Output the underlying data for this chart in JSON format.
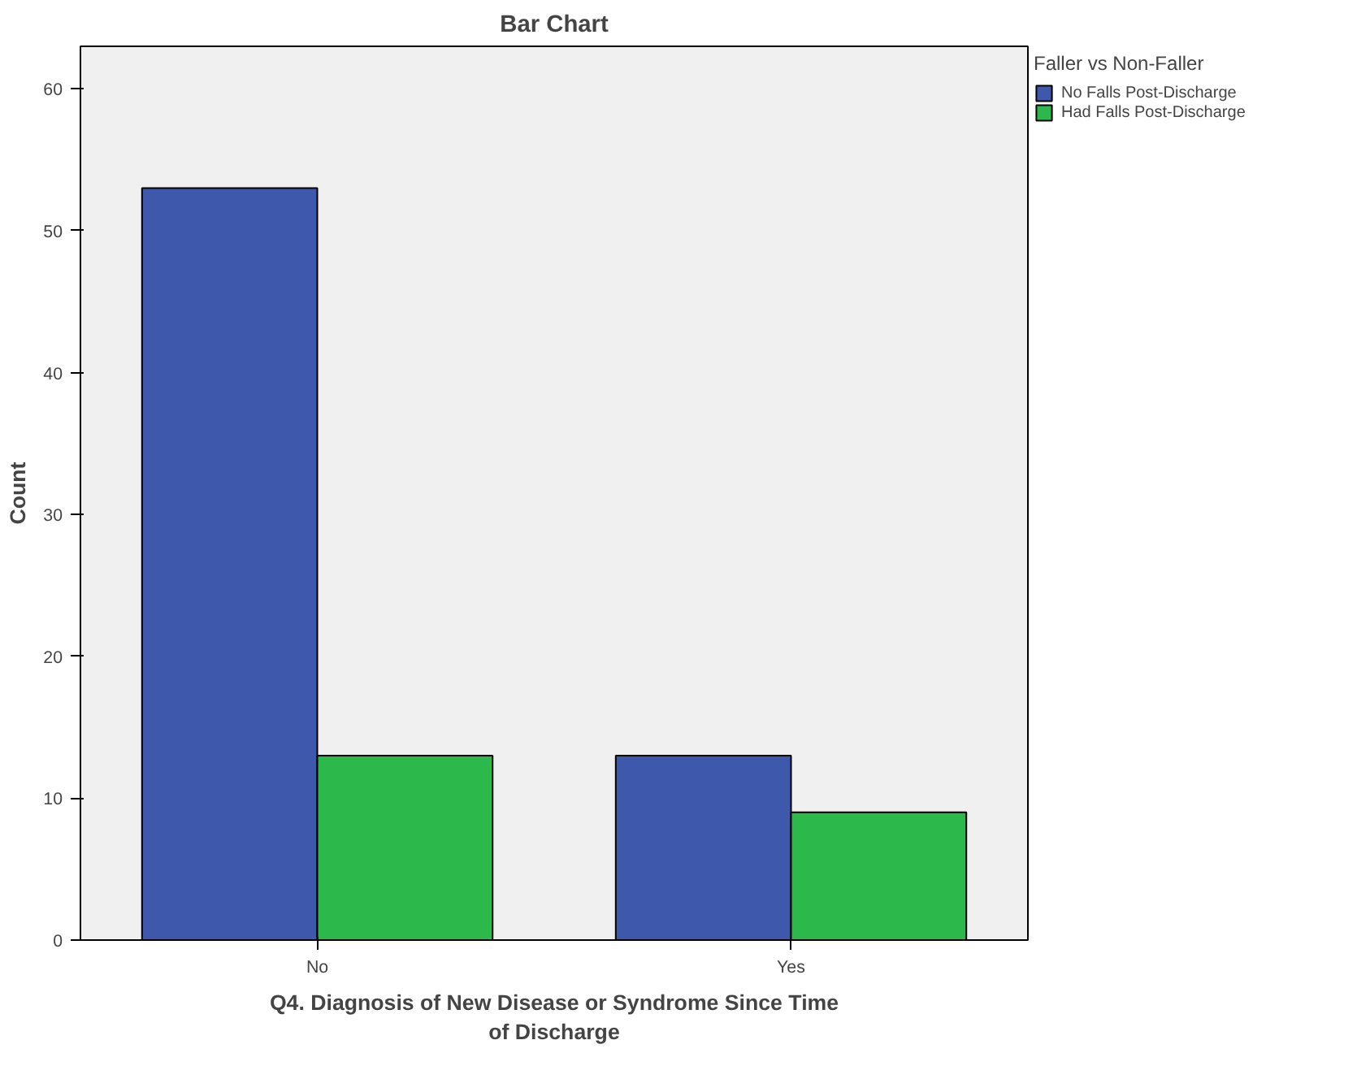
{
  "chart_data": {
    "type": "bar",
    "title": "Bar Chart",
    "xlabel": "Q4. Diagnosis of New Disease or Syndrome Since Time\nof Discharge",
    "ylabel": "Count",
    "legend_title": "Faller vs Non-Faller",
    "categories": [
      "No",
      "Yes"
    ],
    "series": [
      {
        "name": "No Falls Post-Discharge",
        "color": "#3e58ac",
        "values": [
          53,
          13
        ]
      },
      {
        "name": "Had Falls Post-Discharge",
        "color": "#2db84c",
        "values": [
          13,
          9
        ]
      }
    ],
    "ylim": [
      0,
      63
    ],
    "yticks": [
      0,
      10,
      20,
      30,
      40,
      50,
      60
    ],
    "grid": false,
    "legend": "top right"
  }
}
